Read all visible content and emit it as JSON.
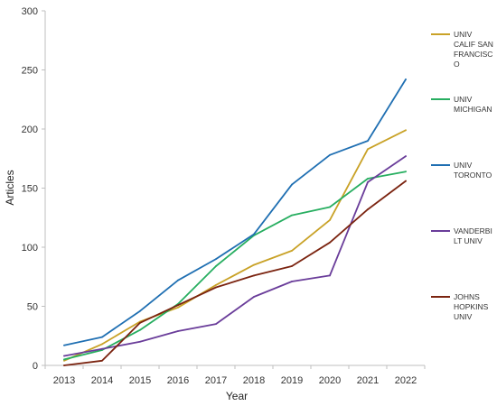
{
  "chart_data": {
    "type": "line",
    "title": "",
    "xlabel": "Year",
    "ylabel": "Articles",
    "x": [
      2013,
      2014,
      2015,
      2016,
      2017,
      2018,
      2019,
      2020,
      2021,
      2022
    ],
    "ylim": [
      0,
      300
    ],
    "yticks": [
      0,
      50,
      100,
      150,
      200,
      250,
      300
    ],
    "grid": false,
    "legend_position": "right",
    "series": [
      {
        "name": "UNIV CALIF SAN FRANCISCO",
        "legend_lines": [
          "UNIV",
          "CALIF SAN",
          "FRANCISC",
          "O"
        ],
        "color": "#c9a227",
        "values": [
          4,
          18,
          37,
          49,
          68,
          85,
          97,
          123,
          183,
          199
        ]
      },
      {
        "name": "UNIV MICHIGAN",
        "legend_lines": [
          "UNIV",
          "MICHIGAN"
        ],
        "color": "#27ae60",
        "values": [
          5,
          13,
          30,
          52,
          84,
          110,
          127,
          134,
          158,
          164
        ]
      },
      {
        "name": "UNIV TORONTO",
        "legend_lines": [
          "UNIV",
          "TORONTO"
        ],
        "color": "#1f6fb2",
        "values": [
          17,
          24,
          46,
          72,
          90,
          111,
          153,
          178,
          190,
          242
        ]
      },
      {
        "name": "VANDERBILT UNIV",
        "legend_lines": [
          "VANDERBI",
          "LT UNIV"
        ],
        "color": "#6a3d9a",
        "values": [
          8,
          14,
          20,
          29,
          35,
          58,
          71,
          76,
          155,
          177
        ]
      },
      {
        "name": "JOHNS HOPKINS UNIV",
        "legend_lines": [
          "JOHNS",
          "HOPKINS",
          "UNIV"
        ],
        "color": "#7b2410",
        "values": [
          0,
          4,
          36,
          51,
          66,
          76,
          84,
          104,
          132,
          156
        ]
      }
    ]
  }
}
